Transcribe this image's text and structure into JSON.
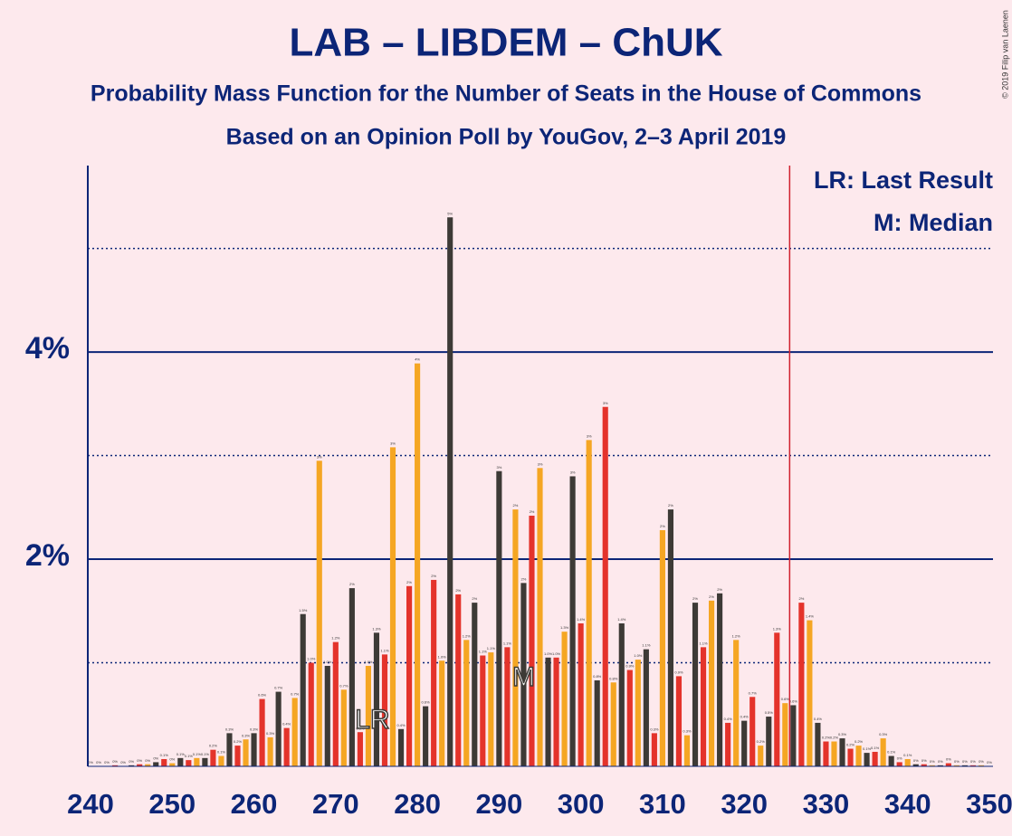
{
  "chart_data": {
    "type": "bar",
    "title": "LAB – LIBDEM – ChUK",
    "subtitle": "Probability Mass Function for the Number of Seats in the House of Commons",
    "subtitle2": "Based on an Opinion Poll by YouGov, 2–3 April 2019",
    "legend": [
      "LR: Last Result",
      "M: Median"
    ],
    "copyright": "© 2019 Filip van Laenen",
    "last_result": {
      "x": 274.5,
      "label": "LR"
    },
    "median": {
      "x": 293,
      "label": "M"
    },
    "majority": 326,
    "majority_color": "#d0202e",
    "colors": [
      "#e4332b",
      "#f5a623",
      "#3d3a36"
    ],
    "categories": [
      240,
      241,
      242,
      243,
      244,
      245,
      246,
      247,
      248,
      249,
      250,
      251,
      252,
      253,
      254,
      255,
      256,
      257,
      258,
      259,
      260,
      261,
      262,
      263,
      264,
      265,
      266,
      267,
      268,
      269,
      270,
      271,
      272,
      273,
      274,
      275,
      276,
      277,
      278,
      279,
      280,
      281,
      282,
      283,
      284,
      285,
      286,
      287,
      288,
      289,
      290,
      291,
      292,
      293,
      294,
      295,
      296,
      297,
      298,
      299,
      300,
      301,
      302,
      303,
      304,
      305,
      306,
      307,
      308,
      309,
      310,
      311,
      312,
      313,
      314,
      315,
      316,
      317,
      318,
      319,
      320,
      321,
      322,
      323,
      324,
      325,
      326,
      327,
      328,
      329,
      330,
      331,
      332,
      333,
      334,
      335,
      336,
      337,
      338,
      339,
      340,
      341,
      342,
      343,
      344,
      345,
      346,
      347,
      348,
      349,
      350
    ],
    "values": [
      0,
      0,
      0,
      0.01,
      0,
      0.01,
      0.02,
      0.02,
      0.04,
      0.07,
      0.03,
      0.08,
      0.06,
      0.08,
      0.08,
      0.16,
      0.1,
      0.32,
      0.2,
      0.26,
      0.32,
      0.65,
      0.28,
      0.72,
      0.37,
      0.66,
      1.47,
      1.0,
      2.95,
      0.97,
      1.2,
      0.74,
      1.72,
      0.33,
      0.97,
      1.29,
      1.08,
      3.08,
      0.36,
      1.74,
      3.89,
      0.58,
      1.8,
      1.02,
      5.3,
      1.66,
      1.22,
      1.58,
      1.07,
      1.1,
      2.85,
      1.15,
      2.48,
      1.77,
      2.42,
      2.88,
      1.05,
      1.05,
      1.3,
      2.8,
      1.38,
      3.15,
      0.83,
      3.47,
      0.81,
      1.38,
      0.93,
      1.03,
      1.13,
      0.32,
      2.28,
      2.48,
      0.87,
      0.3,
      1.58,
      1.15,
      1.6,
      1.67,
      0.42,
      1.22,
      0.44,
      0.67,
      0.2,
      0.48,
      1.29,
      0.61,
      0.59,
      1.58,
      1.41,
      0.42,
      0.24,
      0.24,
      0.27,
      0.17,
      0.2,
      0.13,
      0.14,
      0.27,
      0.1,
      0.04,
      0.07,
      0.02,
      0.02,
      0.01,
      0.01,
      0.03,
      0.01,
      0.01,
      0.01,
      0.01,
      0
    ],
    "value_labels": [
      "0%",
      "0%",
      "0%",
      "0%",
      "0%",
      "0%",
      "0%",
      "0%",
      "0%",
      "0.1%",
      "0%",
      "0.1%",
      "0.1%",
      "0.1%",
      "0.1%",
      "0.2%",
      "0.1%",
      "0.3%",
      "0.2%",
      "0.3%",
      "0.3%",
      "0.6%",
      "0.3%",
      "0.7%",
      "0.4%",
      "0.7%",
      "1.5%",
      "1.0%",
      "3%",
      "1.0%",
      "1.2%",
      "0.7%",
      "2%",
      "0.3%",
      "1.0%",
      "1.3%",
      "1.1%",
      "3%",
      "0.4%",
      "2%",
      "4%",
      "0.6%",
      "2%",
      "1.0%",
      "5%",
      "2%",
      "1.2%",
      "2%",
      "1.1%",
      "1.1%",
      "3%",
      "1.1%",
      "2%",
      "2%",
      "2%",
      "3%",
      "1.0%",
      "1.0%",
      "1.3%",
      "3%",
      "1.4%",
      "3%",
      "0.8%",
      "3%",
      "0.8%",
      "1.4%",
      "0.9%",
      "1.0%",
      "1.1%",
      "0.3%",
      "2%",
      "2%",
      "0.9%",
      "0.3%",
      "2%",
      "1.1%",
      "2%",
      "2%",
      "0.4%",
      "1.2%",
      "0.4%",
      "0.7%",
      "0.2%",
      "0.5%",
      "1.3%",
      "0.6%",
      "0.6%",
      "2%",
      "1.4%",
      "0.4%",
      "0.2%",
      "0.2%",
      "0.3%",
      "0.2%",
      "0.2%",
      "0.1%",
      "0.1%",
      "0.3%",
      "0.1%",
      "0%",
      "0.1%",
      "0%",
      "0%",
      "0%",
      "0%",
      "0%",
      "0%",
      "0%",
      "0%",
      "0%",
      "0%"
    ],
    "xlim": [
      240,
      350
    ],
    "xticks": [
      240,
      250,
      260,
      270,
      280,
      290,
      300,
      310,
      320,
      330,
      340,
      350
    ],
    "ylim": [
      0,
      5.8
    ],
    "yticks": [
      {
        "value": 2,
        "label": "2%"
      },
      {
        "value": 4,
        "label": "4%"
      }
    ],
    "yticks_minor": [
      1,
      3,
      5
    ],
    "grid": true
  }
}
